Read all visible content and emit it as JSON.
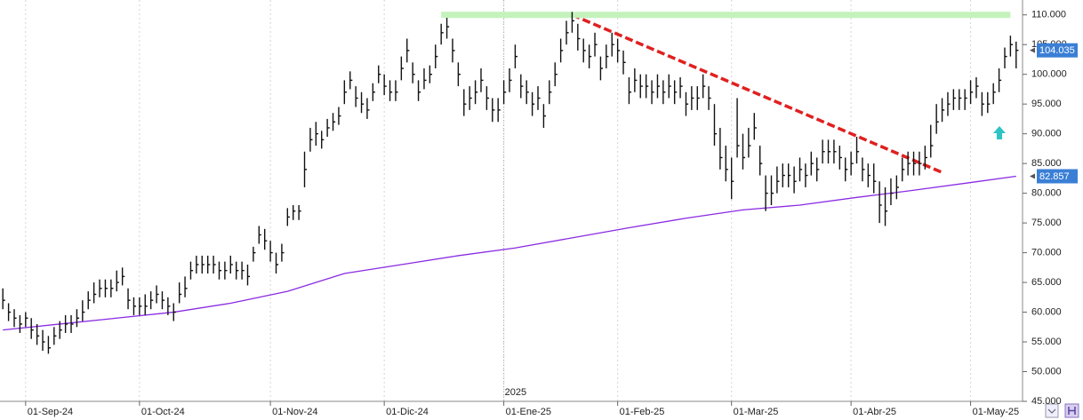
{
  "chart_data": {
    "type": "ohlc",
    "categories": [
      null,
      null,
      null,
      null,
      "01-Sep-24",
      null,
      null,
      null,
      null,
      null,
      null,
      null,
      null,
      null,
      null,
      null,
      null,
      null,
      null,
      null,
      null,
      null,
      null,
      null,
      "01-Oct-24",
      null,
      null,
      null,
      null,
      null,
      null,
      null,
      null,
      null,
      null,
      null,
      null,
      null,
      null,
      null,
      null,
      null,
      null,
      null,
      null,
      null,
      null,
      "01-Nov-24",
      null,
      null,
      null,
      null,
      null,
      null,
      null,
      null,
      null,
      null,
      null,
      null,
      null,
      null,
      null,
      null,
      null,
      null,
      null,
      "01-Dic-24",
      null,
      null,
      null,
      null,
      null,
      null,
      null,
      null,
      null,
      null,
      null,
      null,
      null,
      null,
      null,
      null,
      null,
      null,
      null,
      null,
      "01-Ene-25",
      null,
      null,
      null,
      null,
      null,
      null,
      null,
      null,
      null,
      null,
      null,
      null,
      null,
      null,
      null,
      null,
      null,
      null,
      null,
      "01-Feb-25",
      null,
      null,
      null,
      null,
      null,
      null,
      null,
      null,
      null,
      null,
      null,
      null,
      null,
      null,
      null,
      null,
      null,
      null,
      null,
      "01-Mar-25",
      null,
      null,
      null,
      null,
      null,
      null,
      null,
      null,
      null,
      null,
      null,
      null,
      null,
      null,
      null,
      null,
      null,
      null,
      null,
      null,
      "01-Abr-25",
      null,
      null,
      null,
      null,
      null,
      null,
      null,
      null,
      null,
      null,
      null,
      null,
      null,
      null,
      null,
      null,
      null,
      null,
      null,
      null,
      "01-May-25",
      null,
      null,
      null,
      null,
      null,
      null,
      null,
      null
    ],
    "year_label": "2025",
    "year_label_index": 88,
    "high": [
      64,
      61.5,
      60.5,
      59.5,
      60,
      59,
      58,
      57,
      56,
      57.5,
      58.5,
      59.5,
      59.5,
      60.5,
      62,
      63.5,
      65,
      65.5,
      65.5,
      65.5,
      67,
      67.5,
      64,
      62.5,
      62.5,
      63,
      63.5,
      64.5,
      63.5,
      62.5,
      61.5,
      65,
      66,
      68.5,
      69.5,
      69.5,
      69.5,
      69.5,
      68.5,
      68.5,
      69.5,
      68.5,
      68.5,
      68,
      71,
      74.5,
      74,
      72,
      70,
      71.5,
      77.5,
      78,
      78,
      87,
      91,
      92,
      90.5,
      92.5,
      93.5,
      94.5,
      99,
      100.5,
      98,
      97,
      96,
      98.5,
      101.5,
      100,
      99,
      99,
      103,
      106,
      102,
      99,
      101,
      101.5,
      105,
      108.5,
      109.5,
      106,
      102,
      97.5,
      98,
      99,
      101,
      98,
      96,
      96,
      99,
      101,
      105,
      100,
      99,
      97,
      98,
      95,
      99,
      102,
      106,
      109,
      110.5,
      108.5,
      106,
      105,
      107,
      103,
      105,
      107,
      106,
      104,
      99.5,
      101,
      100,
      100,
      99,
      100,
      99,
      100,
      99,
      99.5,
      97,
      98,
      98,
      100,
      98,
      95,
      91,
      88,
      86,
      96,
      90,
      91,
      93.5,
      88,
      83,
      83,
      84.5,
      85,
      85,
      84.5,
      86,
      85,
      87,
      86,
      89,
      89,
      89,
      88,
      86,
      87,
      89.5,
      86,
      85,
      85,
      82,
      81,
      82.5,
      83,
      86,
      87,
      87,
      87,
      88,
      91.5,
      95,
      96,
      97,
      97.5,
      97.5,
      97.5,
      99,
      99.5,
      97,
      97,
      98.5,
      101,
      104.5,
      106.5,
      105.5
    ],
    "low": [
      60.5,
      58.5,
      57.5,
      56.5,
      57.5,
      55.5,
      54.5,
      53.5,
      53,
      54.5,
      55.5,
      56.5,
      56.5,
      57.5,
      58.5,
      60.5,
      61.5,
      62.5,
      62.5,
      62.5,
      63.5,
      64.5,
      60.5,
      59.5,
      59.5,
      59.5,
      60.5,
      61.5,
      60.5,
      59.5,
      58.5,
      61.5,
      62.5,
      65.5,
      66.5,
      66.5,
      66.5,
      66.5,
      65.5,
      65.5,
      66.5,
      65.5,
      65.5,
      64.5,
      68.5,
      71.5,
      70.5,
      68.5,
      66.5,
      68.5,
      74.5,
      75.5,
      75.5,
      81,
      87,
      88,
      87.5,
      89.5,
      90.5,
      91.5,
      95,
      97.5,
      94.5,
      93.5,
      92.5,
      95.5,
      98.5,
      96.5,
      95.5,
      95.5,
      99,
      102,
      98.5,
      95.5,
      97.5,
      98.5,
      101,
      105,
      106,
      102,
      98,
      93,
      94,
      95,
      97,
      94,
      92,
      92,
      95,
      97,
      101,
      96,
      95,
      93,
      94,
      91,
      95,
      98,
      102,
      105,
      107,
      104,
      102,
      101,
      103,
      99,
      101,
      103,
      102,
      100,
      95,
      97,
      96,
      96,
      95,
      96,
      95,
      96,
      95,
      96,
      93,
      94,
      94,
      96,
      94,
      88,
      84,
      82,
      79,
      86,
      84,
      86,
      89,
      83,
      77,
      78,
      80,
      81,
      81,
      80,
      82,
      81,
      83,
      82,
      85,
      85,
      85,
      84,
      82,
      83,
      85,
      82,
      81,
      80,
      75,
      74.5,
      78,
      79,
      82,
      83,
      83,
      83,
      84,
      86,
      90,
      92,
      93,
      94,
      94,
      94,
      95,
      96,
      93,
      93.5,
      95,
      97,
      101,
      103,
      101
    ],
    "close": [
      62,
      60,
      59,
      58,
      59,
      57,
      56,
      55,
      54,
      56,
      57,
      58,
      58,
      59,
      60,
      62,
      63,
      64,
      64,
      64,
      65,
      66,
      62,
      61,
      61,
      61,
      62,
      63,
      62,
      61,
      60,
      63,
      64,
      67,
      68,
      68,
      68,
      68,
      67,
      67,
      68,
      67,
      67,
      66,
      70,
      73,
      72,
      70,
      68,
      70,
      76,
      77,
      77,
      84,
      89,
      90,
      89,
      91,
      92,
      93,
      97,
      99,
      96,
      95,
      94,
      97,
      100,
      98,
      97,
      97,
      101,
      104,
      100,
      97,
      99,
      100,
      103,
      107,
      108,
      104,
      100,
      95,
      96,
      97,
      99,
      96,
      94,
      94,
      97,
      99,
      103,
      98,
      97,
      95,
      96,
      93,
      97,
      100,
      104,
      107,
      109,
      106,
      104,
      103,
      105,
      101,
      103,
      105,
      104,
      102,
      97,
      99,
      98,
      98,
      97,
      98,
      97,
      98,
      97,
      98,
      95,
      96,
      96,
      98,
      96,
      90,
      86,
      84,
      82,
      88,
      86,
      88,
      91,
      85,
      80,
      80,
      82,
      83,
      83,
      82,
      84,
      83,
      85,
      84,
      87,
      87,
      87,
      86,
      84,
      85,
      87,
      84,
      83,
      82,
      78,
      77,
      80,
      81,
      84,
      85,
      85,
      85,
      86,
      88,
      92,
      94,
      95,
      96,
      96,
      96,
      97,
      98,
      95,
      95,
      97,
      99,
      103,
      105,
      104.035
    ],
    "bar_color": "#111111",
    "last_close_color": "#3a7fd5",
    "moving_average": {
      "color": "#8a2be2",
      "x": [
        0,
        10,
        20,
        30,
        40,
        50,
        60,
        70,
        80,
        90,
        100,
        110,
        120,
        130,
        140,
        150,
        160,
        170,
        178
      ],
      "values": [
        57,
        58,
        59,
        60,
        61.5,
        63.5,
        66.5,
        68,
        69.5,
        70.8,
        72.5,
        74.2,
        75.8,
        77.2,
        78,
        79.3,
        80.5,
        81.8,
        82.857
      ]
    },
    "annotations": [
      {
        "style": "dashed",
        "color": "#e02020",
        "x": [
          100,
          165
        ],
        "y": [
          110,
          83.5
        ]
      },
      {
        "style": "band",
        "color": "#c4f2bc",
        "x": [
          77,
          177
        ],
        "y": [
          110,
          110
        ]
      }
    ],
    "ylim": [
      45,
      112.5
    ],
    "yticks": [
      {
        "value": 45,
        "label": "45.000"
      },
      {
        "value": 50,
        "label": "50.000"
      },
      {
        "value": 55,
        "label": "55.000"
      },
      {
        "value": 60,
        "label": "60.000"
      },
      {
        "value": 65,
        "label": "65.000"
      },
      {
        "value": 70,
        "label": "70.000"
      },
      {
        "value": 75,
        "label": "75.000"
      },
      {
        "value": 80,
        "label": "80.000"
      },
      {
        "value": 85,
        "label": "85.000"
      },
      {
        "value": 90,
        "label": "90.000"
      },
      {
        "value": 95,
        "label": "95.000"
      },
      {
        "value": 100,
        "label": "100.000"
      },
      {
        "value": 105,
        "label": "105.000"
      },
      {
        "value": 110,
        "label": "110.000"
      }
    ],
    "xgrid": true
  }
}
